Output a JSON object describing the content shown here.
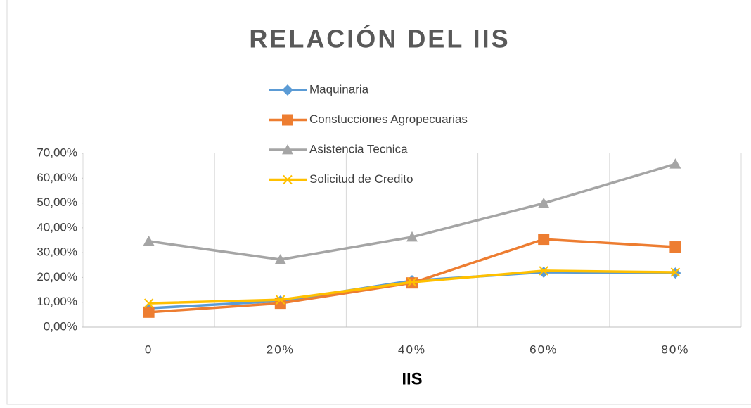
{
  "chart_data": {
    "type": "line",
    "title": "RELACIÓN DEL IIS",
    "x_label": "IIS",
    "categories": [
      "0",
      "20%",
      "40%",
      "60%",
      "80%"
    ],
    "series": [
      {
        "name": "Maquinaria",
        "color": "#5b9bd5",
        "marker": "diamond",
        "values": [
          7.6,
          10.5,
          18.7,
          22.1,
          21.8
        ]
      },
      {
        "name": "Constucciones Agropecuarias",
        "color": "#ed7d31",
        "marker": "square",
        "values": [
          6.0,
          9.6,
          17.8,
          35.4,
          32.3
        ]
      },
      {
        "name": "Asistencia Tecnica",
        "color": "#a5a5a5",
        "marker": "triangle",
        "values": [
          34.6,
          27.2,
          36.3,
          49.9,
          65.7
        ]
      },
      {
        "name": "Solicitud de Credito",
        "color": "#ffc000",
        "marker": "x",
        "values": [
          9.6,
          11.0,
          18.1,
          22.7,
          22.1
        ]
      }
    ],
    "ylim": [
      0,
      70
    ],
    "yticks": [
      {
        "value": 0,
        "label": "0,00%"
      },
      {
        "value": 10,
        "label": "10,00%"
      },
      {
        "value": 20,
        "label": "20,00%"
      },
      {
        "value": 30,
        "label": "30,00%"
      },
      {
        "value": 40,
        "label": "40,00%"
      },
      {
        "value": 50,
        "label": "50,00%"
      },
      {
        "value": 60,
        "label": "60,00%"
      },
      {
        "value": 70,
        "label": "70,00%"
      }
    ],
    "grid": "x",
    "legend": "top"
  }
}
